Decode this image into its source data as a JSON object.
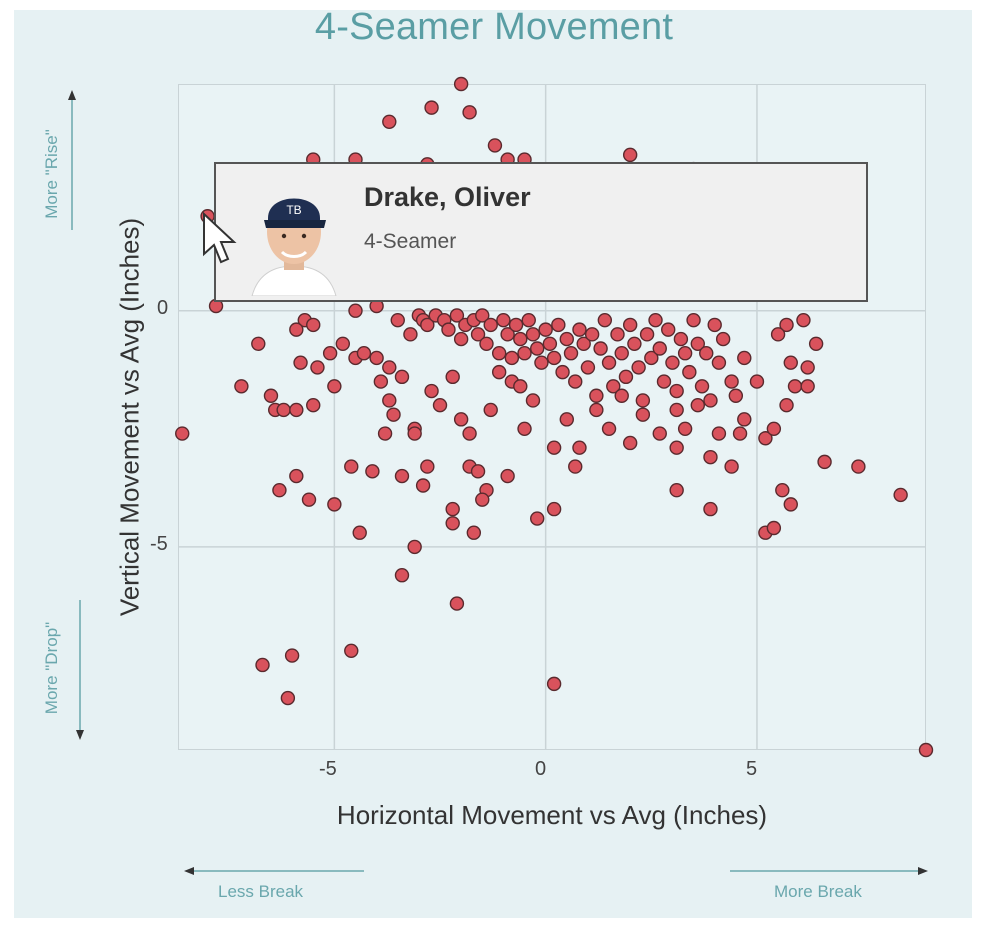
{
  "chart_data": {
    "type": "scatter",
    "title": "4-Seamer Movement",
    "xlabel": "Horizontal Movement vs Avg (Inches)",
    "ylabel": "Vertical Movement vs Avg (Inches)",
    "xlim": [
      -8.7,
      9.0
    ],
    "ylim": [
      -9.3,
      4.8
    ],
    "xticks": [
      "-5",
      "0",
      "5"
    ],
    "yticks": [
      "0",
      "-5"
    ],
    "grid": true,
    "legend": "none",
    "point_color": "#d9525c",
    "point_edge": "#5a2a2e",
    "points": [
      [
        -2.0,
        4.8
      ],
      [
        -2.7,
        4.3
      ],
      [
        -1.8,
        4.2
      ],
      [
        -3.7,
        4.0
      ],
      [
        -1.2,
        3.5
      ],
      [
        -0.9,
        3.2
      ],
      [
        -0.5,
        3.2
      ],
      [
        -5.5,
        3.2
      ],
      [
        -4.5,
        3.2
      ],
      [
        2.0,
        3.3
      ],
      [
        -2.8,
        3.1
      ],
      [
        3.5,
        3.0
      ],
      [
        -8.0,
        2.0
      ],
      [
        -7.8,
        0.1
      ],
      [
        -5.7,
        -0.2
      ],
      [
        -5.9,
        -0.4
      ],
      [
        -5.5,
        -0.3
      ],
      [
        -6.8,
        -0.7
      ],
      [
        -5.8,
        -1.1
      ],
      [
        -5.4,
        -1.2
      ],
      [
        -5.1,
        -0.9
      ],
      [
        -5.0,
        -1.6
      ],
      [
        -7.2,
        -1.6
      ],
      [
        -6.5,
        -1.8
      ],
      [
        -6.4,
        -2.1
      ],
      [
        -6.2,
        -2.1
      ],
      [
        -5.9,
        -2.1
      ],
      [
        -5.5,
        -2.0
      ],
      [
        -8.6,
        -2.6
      ],
      [
        -4.8,
        -0.7
      ],
      [
        -4.5,
        -1.0
      ],
      [
        -4.3,
        -0.9
      ],
      [
        -4.0,
        -1.0
      ],
      [
        -3.7,
        -1.2
      ],
      [
        -3.4,
        -1.4
      ],
      [
        -3.9,
        -1.5
      ],
      [
        -3.7,
        -1.9
      ],
      [
        -3.6,
        -2.2
      ],
      [
        -3.8,
        -2.6
      ],
      [
        -3.1,
        -2.5
      ],
      [
        -3.1,
        -2.6
      ],
      [
        -2.7,
        -1.7
      ],
      [
        -2.5,
        -2.0
      ],
      [
        -2.2,
        -1.4
      ],
      [
        -2.0,
        -2.3
      ],
      [
        -1.8,
        -2.6
      ],
      [
        -1.3,
        -2.1
      ],
      [
        -1.1,
        -1.3
      ],
      [
        -0.8,
        -1.5
      ],
      [
        -0.5,
        -2.5
      ],
      [
        -0.6,
        -1.6
      ],
      [
        -0.3,
        -1.9
      ],
      [
        -4.6,
        -3.3
      ],
      [
        -4.1,
        -3.4
      ],
      [
        -3.4,
        -3.5
      ],
      [
        -2.8,
        -3.3
      ],
      [
        -2.9,
        -3.7
      ],
      [
        -1.8,
        -3.3
      ],
      [
        -1.6,
        -3.4
      ],
      [
        -1.4,
        -3.8
      ],
      [
        -1.5,
        -4.0
      ],
      [
        -0.9,
        -3.5
      ],
      [
        -2.2,
        -4.2
      ],
      [
        -2.2,
        -4.5
      ],
      [
        -1.7,
        -4.7
      ],
      [
        -0.2,
        -4.4
      ],
      [
        0.2,
        -4.2
      ],
      [
        -5.9,
        -3.5
      ],
      [
        -6.3,
        -3.8
      ],
      [
        -5.6,
        -4.0
      ],
      [
        -5.0,
        -4.1
      ],
      [
        -4.4,
        -4.7
      ],
      [
        -3.1,
        -5.0
      ],
      [
        -3.4,
        -5.6
      ],
      [
        -2.1,
        -6.2
      ],
      [
        -6.7,
        -7.5
      ],
      [
        -6.0,
        -7.3
      ],
      [
        -6.1,
        -8.2
      ],
      [
        -4.6,
        -7.2
      ],
      [
        0.2,
        -7.9
      ],
      [
        -4.5,
        0.0
      ],
      [
        -4.0,
        0.1
      ],
      [
        -3.5,
        -0.2
      ],
      [
        -3.2,
        -0.5
      ],
      [
        -3.0,
        -0.1
      ],
      [
        -2.9,
        -0.2
      ],
      [
        -2.8,
        -0.3
      ],
      [
        -2.6,
        -0.1
      ],
      [
        -2.4,
        -0.2
      ],
      [
        -2.3,
        -0.4
      ],
      [
        -2.1,
        -0.1
      ],
      [
        -2.0,
        -0.6
      ],
      [
        -1.9,
        -0.3
      ],
      [
        -1.7,
        -0.2
      ],
      [
        -1.6,
        -0.5
      ],
      [
        -1.5,
        -0.1
      ],
      [
        -1.4,
        -0.7
      ],
      [
        -1.3,
        -0.3
      ],
      [
        -1.1,
        -0.9
      ],
      [
        -1.0,
        -0.2
      ],
      [
        -0.9,
        -0.5
      ],
      [
        -0.8,
        -1.0
      ],
      [
        -0.7,
        -0.3
      ],
      [
        -0.6,
        -0.6
      ],
      [
        -0.5,
        -0.9
      ],
      [
        -0.4,
        -0.2
      ],
      [
        -0.3,
        -0.5
      ],
      [
        -0.2,
        -0.8
      ],
      [
        -0.1,
        -1.1
      ],
      [
        0.0,
        -0.4
      ],
      [
        0.1,
        -0.7
      ],
      [
        0.2,
        -1.0
      ],
      [
        0.3,
        -0.3
      ],
      [
        0.4,
        -1.3
      ],
      [
        0.5,
        -0.6
      ],
      [
        0.6,
        -0.9
      ],
      [
        0.7,
        -1.5
      ],
      [
        0.8,
        -0.4
      ],
      [
        0.9,
        -0.7
      ],
      [
        1.0,
        -1.2
      ],
      [
        1.1,
        -0.5
      ],
      [
        1.2,
        -1.8
      ],
      [
        1.3,
        -0.8
      ],
      [
        1.4,
        -0.2
      ],
      [
        1.5,
        -1.1
      ],
      [
        1.6,
        -1.6
      ],
      [
        1.7,
        -0.5
      ],
      [
        1.8,
        -0.9
      ],
      [
        1.9,
        -1.4
      ],
      [
        2.0,
        -0.3
      ],
      [
        2.1,
        -0.7
      ],
      [
        2.2,
        -1.2
      ],
      [
        2.3,
        -1.9
      ],
      [
        2.4,
        -0.5
      ],
      [
        2.5,
        -1.0
      ],
      [
        2.6,
        -0.2
      ],
      [
        2.7,
        -0.8
      ],
      [
        2.8,
        -1.5
      ],
      [
        2.9,
        -0.4
      ],
      [
        3.0,
        -1.1
      ],
      [
        3.1,
        -1.7
      ],
      [
        3.2,
        -0.6
      ],
      [
        3.3,
        -0.9
      ],
      [
        3.4,
        -1.3
      ],
      [
        3.5,
        -0.2
      ],
      [
        3.6,
        -0.7
      ],
      [
        3.7,
        -1.6
      ],
      [
        3.8,
        -0.9
      ],
      [
        4.0,
        -0.3
      ],
      [
        4.1,
        -1.1
      ],
      [
        4.2,
        -0.6
      ],
      [
        4.4,
        -1.5
      ],
      [
        0.5,
        -2.3
      ],
      [
        0.8,
        -2.9
      ],
      [
        1.2,
        -2.1
      ],
      [
        1.5,
        -2.5
      ],
      [
        1.8,
        -1.8
      ],
      [
        2.0,
        -2.8
      ],
      [
        2.3,
        -2.2
      ],
      [
        2.7,
        -2.6
      ],
      [
        3.1,
        -2.1
      ],
      [
        3.3,
        -2.5
      ],
      [
        3.6,
        -2.0
      ],
      [
        3.9,
        -1.9
      ],
      [
        4.1,
        -2.6
      ],
      [
        4.5,
        -1.8
      ],
      [
        4.7,
        -2.3
      ],
      [
        5.0,
        -1.5
      ],
      [
        5.2,
        -2.7
      ],
      [
        5.4,
        -2.5
      ],
      [
        5.7,
        -2.0
      ],
      [
        5.9,
        -1.6
      ],
      [
        6.2,
        -1.2
      ],
      [
        6.4,
        -0.7
      ],
      [
        6.1,
        -0.2
      ],
      [
        5.7,
        -0.3
      ],
      [
        5.5,
        -0.5
      ],
      [
        5.8,
        -1.1
      ],
      [
        6.2,
        -1.6
      ],
      [
        4.7,
        -1.0
      ],
      [
        4.6,
        -2.6
      ],
      [
        0.2,
        -2.9
      ],
      [
        0.7,
        -3.3
      ],
      [
        3.1,
        -2.9
      ],
      [
        3.9,
        -3.1
      ],
      [
        4.4,
        -3.3
      ],
      [
        5.6,
        -3.8
      ],
      [
        5.8,
        -4.1
      ],
      [
        5.2,
        -4.7
      ],
      [
        5.4,
        -4.6
      ],
      [
        3.1,
        -3.8
      ],
      [
        3.9,
        -4.2
      ],
      [
        6.6,
        -3.2
      ],
      [
        7.4,
        -3.3
      ],
      [
        8.4,
        -3.9
      ],
      [
        9.0,
        -9.3
      ]
    ]
  },
  "side_labels": {
    "more_rise": "More \"Rise\"",
    "more_drop": "More \"Drop\"",
    "less_break": "Less Break",
    "more_break": "More Break"
  },
  "tooltip": {
    "player_name": "Drake, Oliver",
    "pitch_type": "4-Seamer",
    "avatar_icon": "player-headshot-icon"
  }
}
